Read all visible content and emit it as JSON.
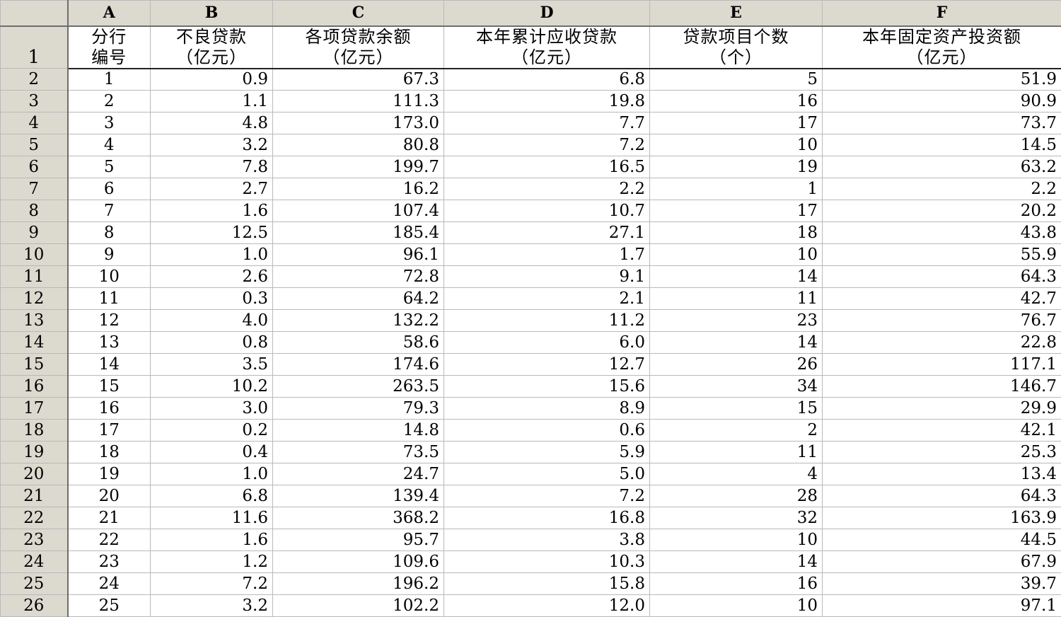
{
  "columns": [
    "A",
    "B",
    "C",
    "D",
    "E",
    "F"
  ],
  "header": {
    "row_label": "1",
    "cells": [
      {
        "line1": "分行",
        "line2": "编号"
      },
      {
        "line1": "不良贷款",
        "line2": "（亿元）"
      },
      {
        "line1": "各项贷款余额",
        "line2": "（亿元）"
      },
      {
        "line1": "本年累计应收贷款",
        "line2": "（亿元）"
      },
      {
        "line1": "贷款项目个数",
        "line2": "（个）"
      },
      {
        "line1": "本年固定资产投资额",
        "line2": "（亿元）"
      }
    ]
  },
  "rows": [
    {
      "row": "2",
      "a": "1",
      "b": "0.9",
      "c": "67.3",
      "d": "6.8",
      "e": "5",
      "f": "51.9"
    },
    {
      "row": "3",
      "a": "2",
      "b": "1.1",
      "c": "111.3",
      "d": "19.8",
      "e": "16",
      "f": "90.9"
    },
    {
      "row": "4",
      "a": "3",
      "b": "4.8",
      "c": "173.0",
      "d": "7.7",
      "e": "17",
      "f": "73.7"
    },
    {
      "row": "5",
      "a": "4",
      "b": "3.2",
      "c": "80.8",
      "d": "7.2",
      "e": "10",
      "f": "14.5"
    },
    {
      "row": "6",
      "a": "5",
      "b": "7.8",
      "c": "199.7",
      "d": "16.5",
      "e": "19",
      "f": "63.2"
    },
    {
      "row": "7",
      "a": "6",
      "b": "2.7",
      "c": "16.2",
      "d": "2.2",
      "e": "1",
      "f": "2.2"
    },
    {
      "row": "8",
      "a": "7",
      "b": "1.6",
      "c": "107.4",
      "d": "10.7",
      "e": "17",
      "f": "20.2"
    },
    {
      "row": "9",
      "a": "8",
      "b": "12.5",
      "c": "185.4",
      "d": "27.1",
      "e": "18",
      "f": "43.8"
    },
    {
      "row": "10",
      "a": "9",
      "b": "1.0",
      "c": "96.1",
      "d": "1.7",
      "e": "10",
      "f": "55.9"
    },
    {
      "row": "11",
      "a": "10",
      "b": "2.6",
      "c": "72.8",
      "d": "9.1",
      "e": "14",
      "f": "64.3"
    },
    {
      "row": "12",
      "a": "11",
      "b": "0.3",
      "c": "64.2",
      "d": "2.1",
      "e": "11",
      "f": "42.7"
    },
    {
      "row": "13",
      "a": "12",
      "b": "4.0",
      "c": "132.2",
      "d": "11.2",
      "e": "23",
      "f": "76.7"
    },
    {
      "row": "14",
      "a": "13",
      "b": "0.8",
      "c": "58.6",
      "d": "6.0",
      "e": "14",
      "f": "22.8"
    },
    {
      "row": "15",
      "a": "14",
      "b": "3.5",
      "c": "174.6",
      "d": "12.7",
      "e": "26",
      "f": "117.1"
    },
    {
      "row": "16",
      "a": "15",
      "b": "10.2",
      "c": "263.5",
      "d": "15.6",
      "e": "34",
      "f": "146.7"
    },
    {
      "row": "17",
      "a": "16",
      "b": "3.0",
      "c": "79.3",
      "d": "8.9",
      "e": "15",
      "f": "29.9"
    },
    {
      "row": "18",
      "a": "17",
      "b": "0.2",
      "c": "14.8",
      "d": "0.6",
      "e": "2",
      "f": "42.1"
    },
    {
      "row": "19",
      "a": "18",
      "b": "0.4",
      "c": "73.5",
      "d": "5.9",
      "e": "11",
      "f": "25.3"
    },
    {
      "row": "20",
      "a": "19",
      "b": "1.0",
      "c": "24.7",
      "d": "5.0",
      "e": "4",
      "f": "13.4"
    },
    {
      "row": "21",
      "a": "20",
      "b": "6.8",
      "c": "139.4",
      "d": "7.2",
      "e": "28",
      "f": "64.3"
    },
    {
      "row": "22",
      "a": "21",
      "b": "11.6",
      "c": "368.2",
      "d": "16.8",
      "e": "32",
      "f": "163.9"
    },
    {
      "row": "23",
      "a": "22",
      "b": "1.6",
      "c": "95.7",
      "d": "3.8",
      "e": "10",
      "f": "44.5"
    },
    {
      "row": "24",
      "a": "23",
      "b": "1.2",
      "c": "109.6",
      "d": "10.3",
      "e": "14",
      "f": "67.9"
    },
    {
      "row": "25",
      "a": "24",
      "b": "7.2",
      "c": "196.2",
      "d": "15.8",
      "e": "16",
      "f": "39.7"
    },
    {
      "row": "26",
      "a": "25",
      "b": "3.2",
      "c": "102.2",
      "d": "12.0",
      "e": "10",
      "f": "97.1"
    }
  ]
}
